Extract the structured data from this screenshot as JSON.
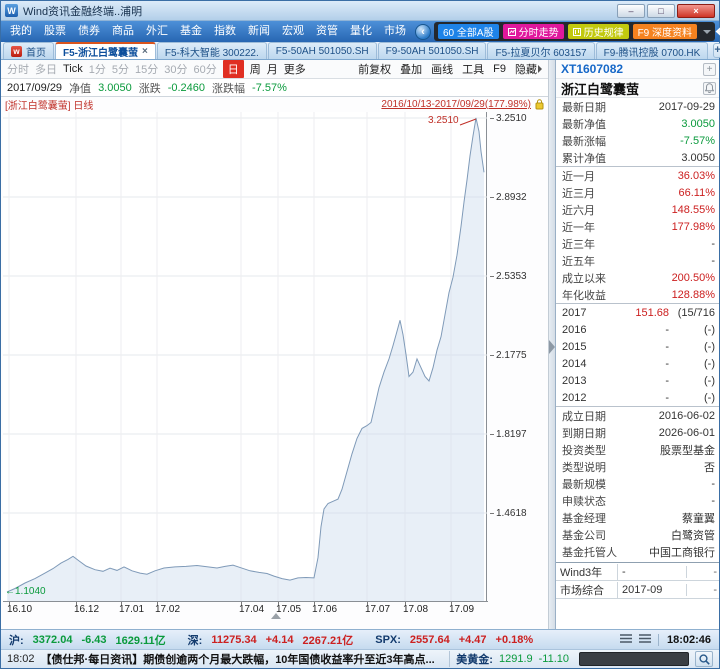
{
  "colors": {
    "up": "#cc2020",
    "down": "#0a9a3c",
    "accent_blue": "#1668c8",
    "badge_blue": "#1e83e8",
    "badge_magenta": "#e0189d",
    "badge_yellow": "#c2c90e",
    "badge_orange": "#f5821f"
  },
  "window": {
    "title": "Wind资讯金融终端..浦明",
    "minimize_glyph": "–",
    "maximize_glyph": "□",
    "close_glyph": "×"
  },
  "menu_bar": {
    "items": [
      "我的",
      "股票",
      "债券",
      "商品",
      "外汇",
      "基金",
      "指数",
      "新闻",
      "宏观",
      "资管",
      "量化",
      "市场"
    ],
    "badges": [
      "60 全部A股",
      "分时走势",
      "历史规律",
      "F9 深度资料"
    ]
  },
  "tab_bar": {
    "home": "首页",
    "tabs": [
      "F5-浙江白鹭囊萤",
      "F5-科大智能 300222.",
      "F5-50AH 501050.SH",
      "F9-50AH 501050.SH",
      "F5-拉夏贝尔 603157",
      "F9-腾讯控股 0700.HK"
    ],
    "close_glyph": "×",
    "add_glyph": "+"
  },
  "period_bar": {
    "items": [
      "分时",
      "多日",
      "Tick",
      "1分",
      "5分",
      "15分",
      "30分",
      "60分",
      "日",
      "周",
      "月",
      "更多"
    ],
    "active": "日",
    "tools": [
      "前复权",
      "叠加",
      "画线",
      "工具",
      "F9",
      "隐藏"
    ]
  },
  "info_bar": {
    "date": "2017/09/29",
    "nav_label": "净值",
    "nav_value": "3.0050",
    "chg_label": "涨跌",
    "chg_value": "-0.2460",
    "pct_label": "涨跌幅",
    "pct_value": "-7.57%"
  },
  "chart_data": {
    "type": "area",
    "title": "[浙江白鹭囊萤] 日线",
    "range_label": "2016/10/13-2017/09/29(177.98%)",
    "y_ticks": [
      "3.2510",
      "2.8932",
      "2.5353",
      "2.1775",
      "1.8197",
      "1.4618"
    ],
    "x_ticks": [
      "16.10",
      "16.12",
      "17.01",
      "17.02",
      "17.04",
      "17.05",
      "17.06",
      "17.07",
      "17.08",
      "17.09"
    ],
    "x_tick_pos": [
      6,
      73,
      118,
      154,
      238,
      275,
      311,
      364,
      402,
      448
    ],
    "ylim": [
      1.07,
      3.3
    ],
    "grid": true,
    "annotations": {
      "start": "1.1040",
      "peak": "3.2510"
    },
    "series": [
      {
        "name": "浙江白鹭囊萤",
        "points": [
          [
            4,
            1.104
          ],
          [
            12,
            1.12
          ],
          [
            22,
            1.145
          ],
          [
            32,
            1.165
          ],
          [
            42,
            1.19
          ],
          [
            50,
            1.21
          ],
          [
            58,
            1.235
          ],
          [
            65,
            1.252
          ],
          [
            70,
            1.266
          ],
          [
            76,
            1.245
          ],
          [
            83,
            1.222
          ],
          [
            92,
            1.205
          ],
          [
            100,
            1.198
          ],
          [
            107,
            1.212
          ],
          [
            114,
            1.202
          ],
          [
            121,
            1.218
          ],
          [
            129,
            1.2
          ],
          [
            137,
            1.19
          ],
          [
            144,
            1.185
          ],
          [
            152,
            1.2
          ],
          [
            161,
            1.213
          ],
          [
            172,
            1.218
          ],
          [
            183,
            1.22
          ],
          [
            194,
            1.224
          ],
          [
            205,
            1.218
          ],
          [
            214,
            1.213
          ],
          [
            222,
            1.22
          ],
          [
            230,
            1.226
          ],
          [
            238,
            1.214
          ],
          [
            247,
            1.2
          ],
          [
            256,
            1.193
          ],
          [
            264,
            1.188
          ],
          [
            271,
            1.176
          ],
          [
            279,
            1.165
          ],
          [
            287,
            1.158
          ],
          [
            295,
            1.168
          ],
          [
            303,
            1.17
          ],
          [
            311,
            1.168
          ],
          [
            315,
            1.26
          ],
          [
            318,
            1.4
          ],
          [
            321,
            1.48
          ],
          [
            325,
            1.505
          ],
          [
            330,
            1.515
          ],
          [
            335,
            1.525
          ],
          [
            339,
            1.57
          ],
          [
            344,
            1.65
          ],
          [
            349,
            1.73
          ],
          [
            354,
            1.8
          ],
          [
            359,
            1.845
          ],
          [
            364,
            1.858
          ],
          [
            368,
            1.872
          ],
          [
            372,
            1.95
          ],
          [
            376,
            2.03
          ],
          [
            381,
            2.1
          ],
          [
            386,
            2.16
          ],
          [
            390,
            2.22
          ],
          [
            394,
            2.285
          ],
          [
            397,
            2.335
          ],
          [
            400,
            2.27
          ],
          [
            403,
            2.18
          ],
          [
            406,
            2.08
          ],
          [
            410,
            2.1
          ],
          [
            414,
            2.16
          ],
          [
            418,
            2.12
          ],
          [
            422,
            2.08
          ],
          [
            426,
            2.06
          ],
          [
            430,
            2.12
          ],
          [
            434,
            2.2
          ],
          [
            438,
            2.26
          ],
          [
            442,
            2.36
          ],
          [
            446,
            2.46
          ],
          [
            450,
            2.53
          ],
          [
            454,
            2.63
          ],
          [
            458,
            2.76
          ],
          [
            461,
            2.87
          ],
          [
            464,
            2.97
          ],
          [
            467,
            3.08
          ],
          [
            470,
            3.17
          ],
          [
            473,
            3.251
          ],
          [
            476,
            3.19
          ],
          [
            478,
            3.1
          ],
          [
            481,
            3.005
          ]
        ]
      }
    ]
  },
  "right_panel": {
    "code": "XT1607082",
    "name": "浙江白鹭囊萤",
    "stats": [
      {
        "label": "最新日期",
        "value": "2017-09-29"
      },
      {
        "label": "最新净值",
        "value": "3.0050"
      },
      {
        "label": "最新涨幅",
        "value": "-7.57%"
      },
      {
        "label": "累计净值",
        "value": "3.0050"
      }
    ],
    "returns": [
      {
        "label": "近一月",
        "value": "36.03%"
      },
      {
        "label": "近三月",
        "value": "66.11%"
      },
      {
        "label": "近六月",
        "value": "148.55%"
      },
      {
        "label": "近一年",
        "value": "177.98%"
      },
      {
        "label": "近三年",
        "value": "-"
      },
      {
        "label": "近五年",
        "value": "-"
      },
      {
        "label": "成立以来",
        "value": "200.50%"
      },
      {
        "label": "年化收益",
        "value": "128.88%"
      }
    ],
    "years": [
      {
        "year": "2017",
        "value": "151.68",
        "rank": "(15/716"
      },
      {
        "year": "2016",
        "value": "-",
        "rank": "(-)"
      },
      {
        "year": "2015",
        "value": "-",
        "rank": "(-)"
      },
      {
        "year": "2014",
        "value": "-",
        "rank": "(-)"
      },
      {
        "year": "2013",
        "value": "-",
        "rank": "(-)"
      },
      {
        "year": "2012",
        "value": "-",
        "rank": "(-)"
      }
    ],
    "profile": [
      {
        "label": "成立日期",
        "value": "2016-06-02"
      },
      {
        "label": "到期日期",
        "value": "2026-06-01"
      },
      {
        "label": "投资类型",
        "value": "股票型基金"
      },
      {
        "label": "类型说明",
        "value": "否"
      },
      {
        "label": "最新规模",
        "value": "-"
      },
      {
        "label": "申赎状态",
        "value": "-"
      },
      {
        "label": "基金经理",
        "value": "蔡童翼"
      },
      {
        "label": "基金公司",
        "value": "白鹭资管"
      },
      {
        "label": "基金托管人",
        "value": "中国工商银行"
      }
    ],
    "rating": [
      {
        "label": "Wind3年",
        "value": "-",
        "extra": "-"
      },
      {
        "label": "市场综合",
        "value": "2017-09",
        "extra": "-"
      }
    ]
  },
  "market_bar": {
    "sh_label": "沪:",
    "sh_index": "3372.04",
    "sh_chg": "-6.43",
    "sh_vol": "1629.11亿",
    "sz_label": "深:",
    "sz_index": "11275.34",
    "sz_chg": "+4.14",
    "sz_vol": "2267.21亿",
    "spx_label": "SPX:",
    "spx_index": "2557.64",
    "spx_chg": "+4.47",
    "spx_pct": "+0.18%",
    "time": "18:02:46"
  },
  "news_bar": {
    "time": "18:02",
    "text": "【债仕邦·每日资讯】期债创逾两个月最大跌幅，10年国债收益率升至近3年高点...",
    "gold_label": "美黄金:",
    "gold_price": "1291.9",
    "gold_chg": "-11.10"
  }
}
